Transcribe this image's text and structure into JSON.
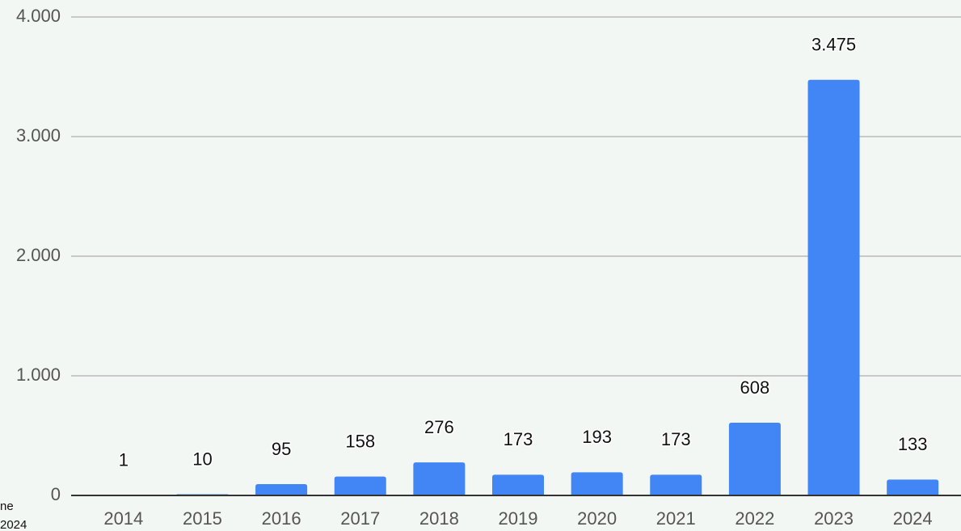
{
  "chart_data": {
    "type": "bar",
    "categories": [
      "2014",
      "2015",
      "2016",
      "2017",
      "2018",
      "2019",
      "2020",
      "2021",
      "2022",
      "2023",
      "2024"
    ],
    "values": [
      1,
      10,
      95,
      158,
      276,
      173,
      193,
      173,
      608,
      3475,
      133
    ],
    "value_labels": [
      "1",
      "10",
      "95",
      "158",
      "276",
      "173",
      "193",
      "173",
      "608",
      "3.475",
      "133"
    ],
    "color": "#4285f4",
    "ylim": [
      0,
      4000
    ],
    "yticks": [
      0,
      {
        "value": 1000,
        "label": "1.000"
      },
      {
        "value": 2000,
        "label": "2.000"
      },
      {
        "value": 3000,
        "label": "3.000"
      },
      {
        "value": 4000,
        "label": "4.000"
      }
    ],
    "grid": true,
    "annotations": [
      "ne",
      "2024"
    ]
  }
}
